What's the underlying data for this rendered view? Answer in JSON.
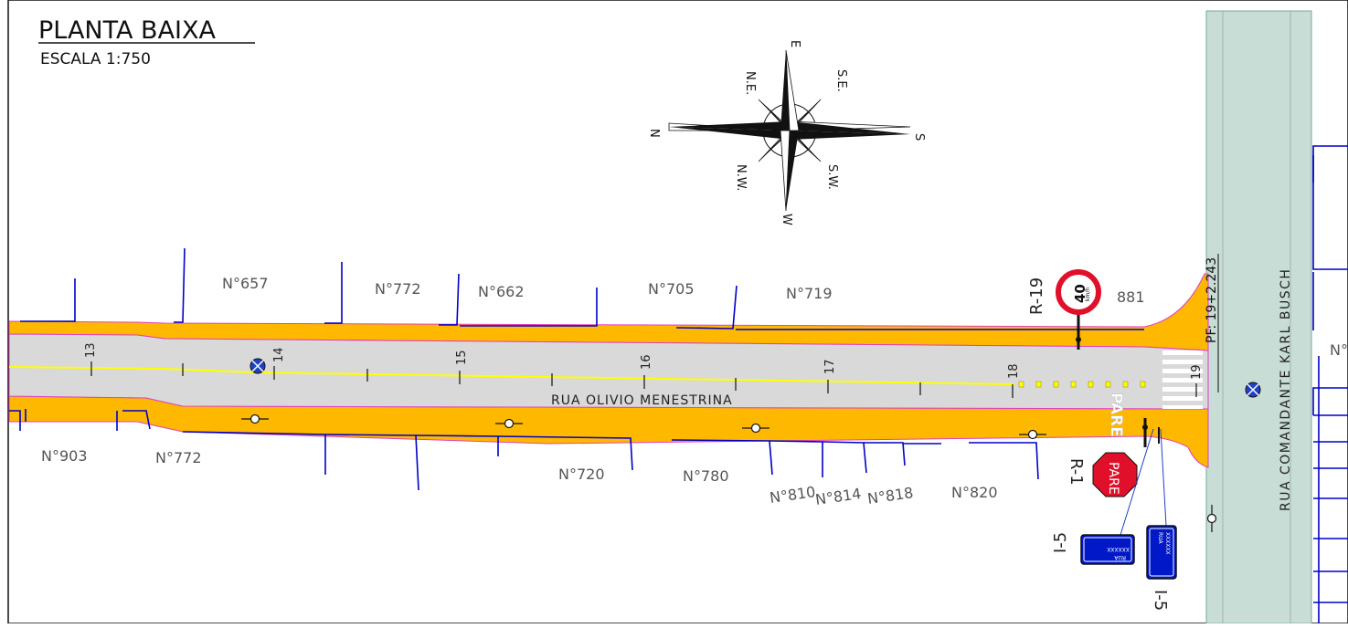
{
  "title": {
    "main": "PLANTA BAIXA",
    "scale": "ESCALA 1:750"
  },
  "compass": {
    "north": "N",
    "south": "S",
    "east": "E",
    "west": "W",
    "northeast": "N.E.",
    "southeast": "S.E.",
    "northwest": "N.W.",
    "southwest": "S.W."
  },
  "streets": {
    "main": "RUA OLIVIO MENESTRINA",
    "cross": "RUA COMANDANTE KARL BUSCH"
  },
  "stations": [
    "13",
    "14",
    "15",
    "16",
    "17",
    "18",
    "19"
  ],
  "pf_label": "PF: 19+2.243",
  "lots_north": [
    "N°657",
    "N°772",
    "N°662",
    "N°705",
    "N°719",
    "881"
  ],
  "lots_south": [
    "N°903",
    "N°772",
    "N°720",
    "N°780",
    "N°810",
    "N°814",
    "N°818",
    "N°820"
  ],
  "lot_right_edge": "N°",
  "signs": {
    "speed_limit_code": "R-19",
    "speed_limit_value": "40",
    "speed_limit_unit": "km/h",
    "stop_code": "R-1",
    "stop_text": "PARE",
    "road_marking": "PARE",
    "name_sign_code_a": "I-5",
    "name_sign_code_b": "I-5",
    "name_sign_line1": "RUA",
    "name_sign_line2": "XXXXXX"
  },
  "colors": {
    "sidewalk": "#FFB800",
    "road": "#D9D9D9",
    "cross_street": "#C8DDD6",
    "centerline": "#FFFF00",
    "lot_lines": "#0000C8",
    "curb_edge": "#E040C0",
    "sign_blue": "#0018C8",
    "stop_red": "#E0102A"
  }
}
